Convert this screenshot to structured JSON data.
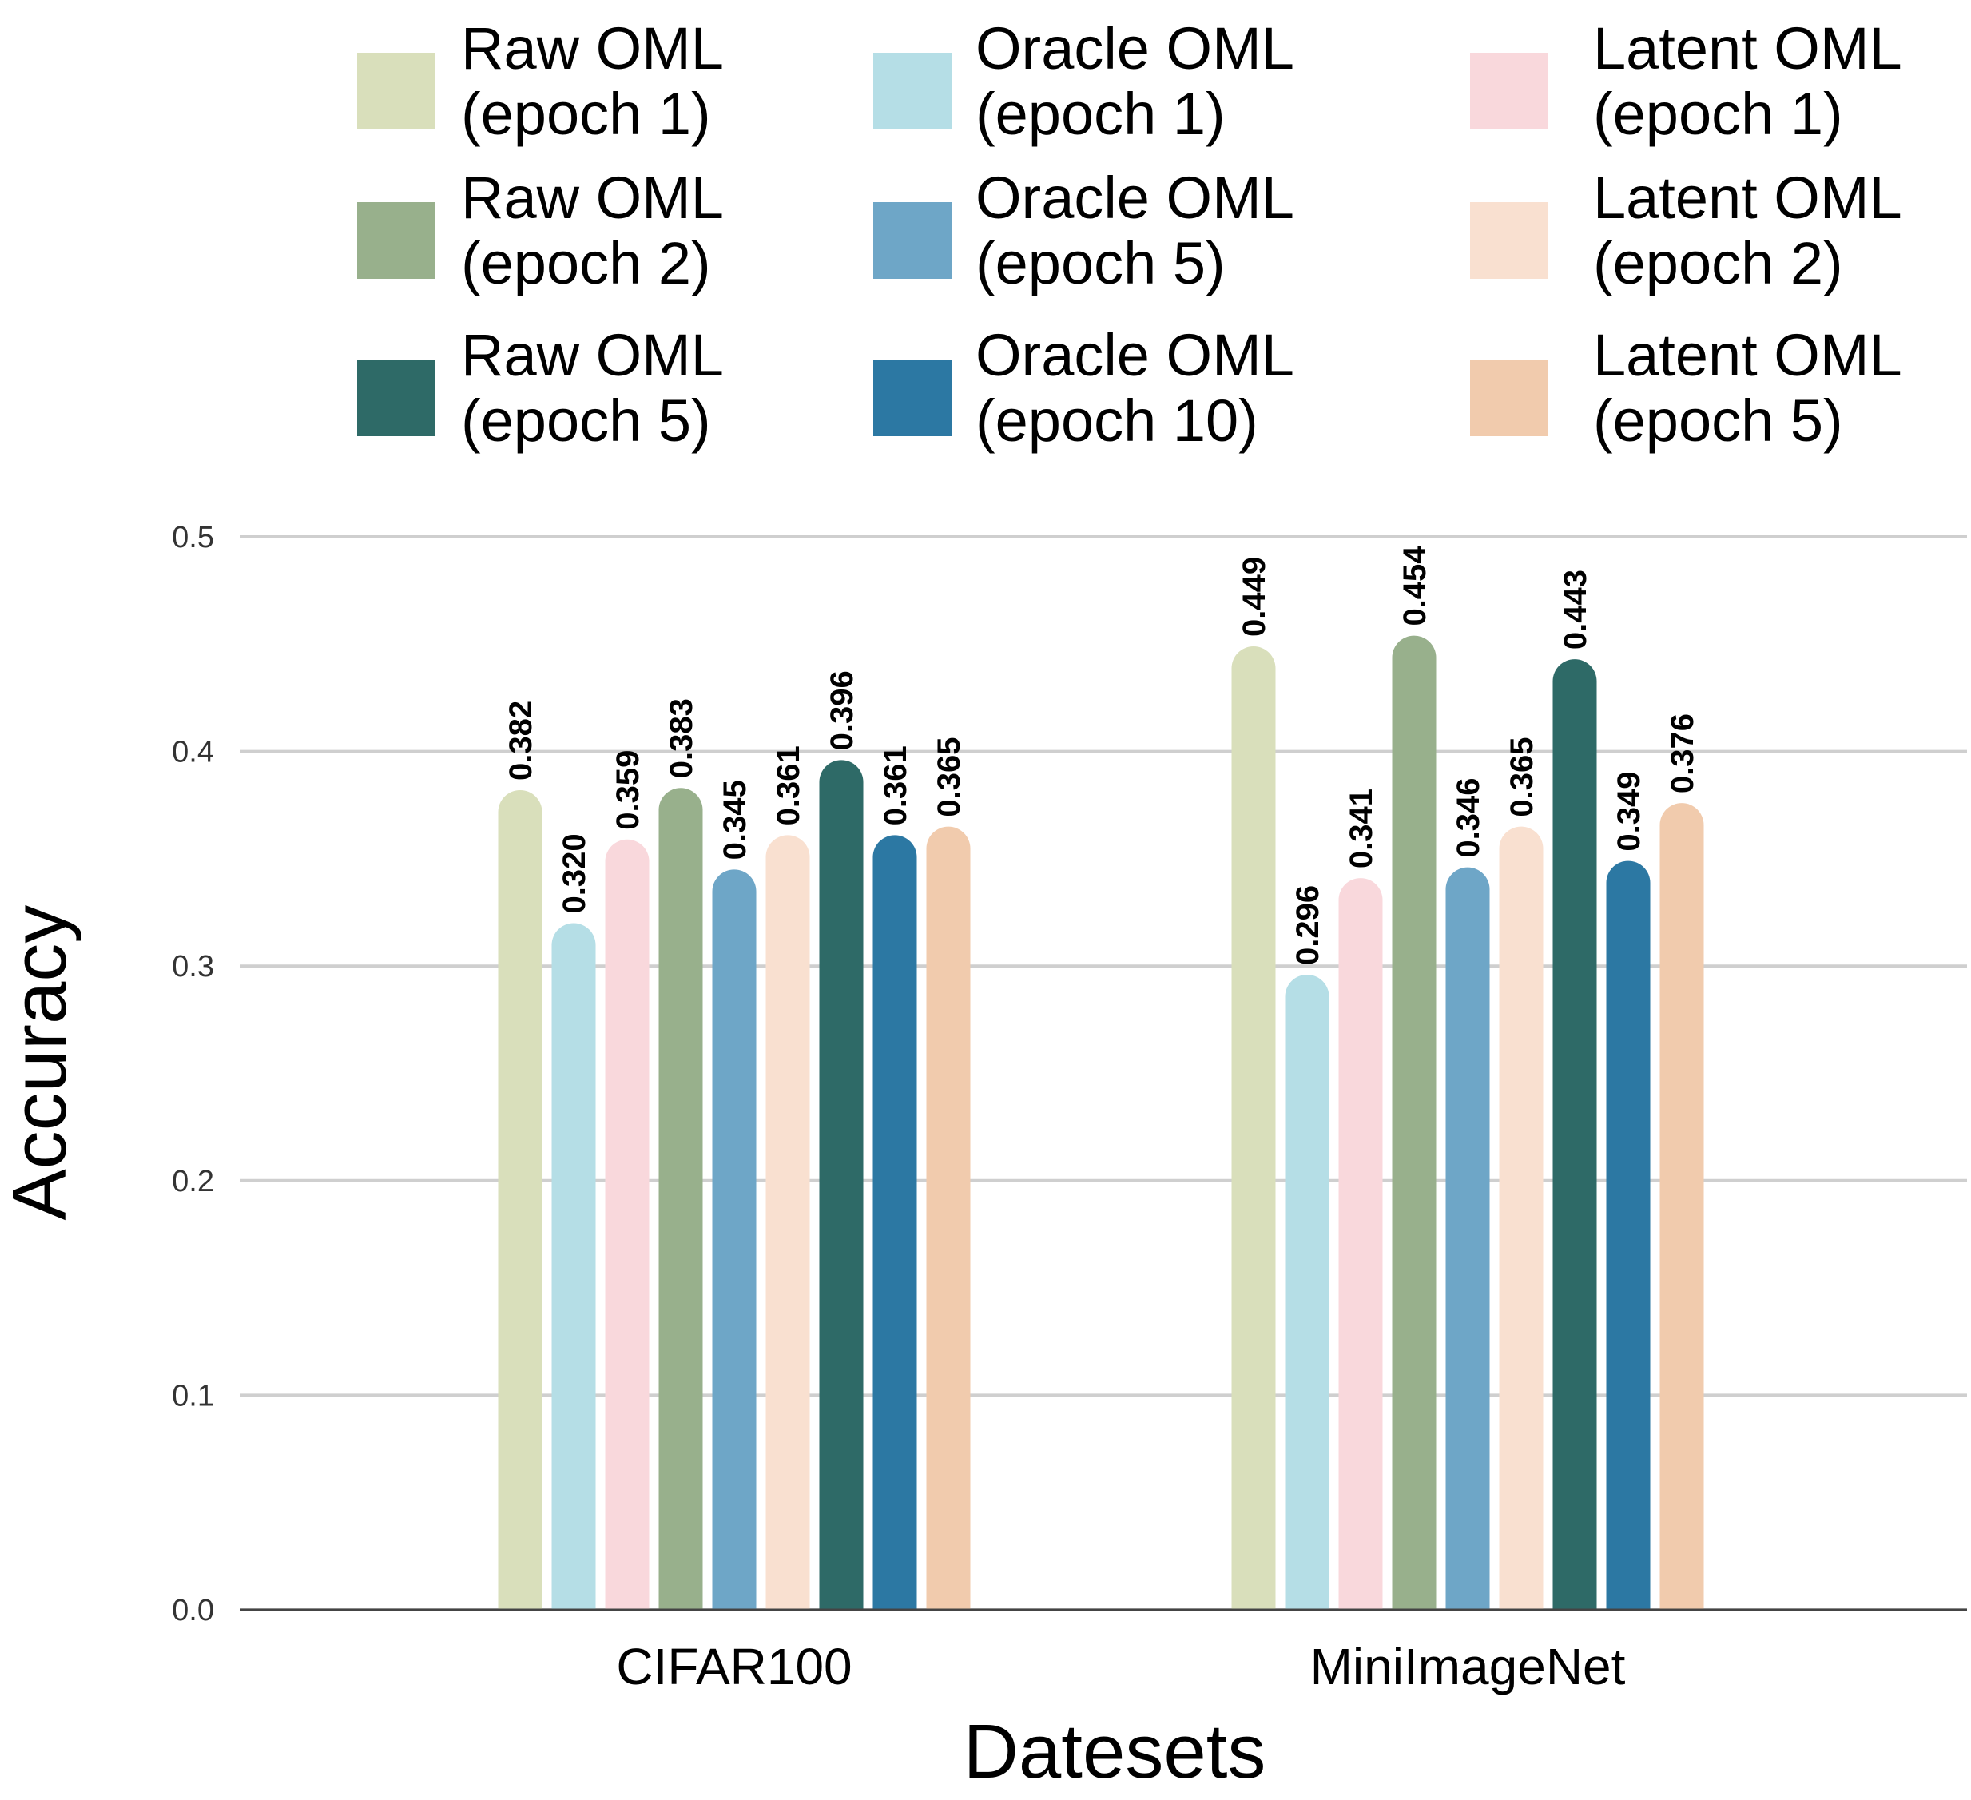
{
  "chart_data": {
    "type": "bar",
    "title": "",
    "xlabel": "Datesets",
    "ylabel": "Accuracy",
    "ylim": [
      0,
      0.5
    ],
    "yticks": [
      "0.0",
      "0.1",
      "0.2",
      "0.3",
      "0.4",
      "0.5"
    ],
    "grid": true,
    "legend_position": "top",
    "categories": [
      "CIFAR100",
      "MiniImageNet"
    ],
    "series": [
      {
        "name": "Raw OML (epoch 1)",
        "line1": "Raw OML",
        "line2": "(epoch 1)",
        "color": "#d9dfbb",
        "values": [
          0.382,
          0.449
        ],
        "labels": [
          "0.382",
          "0.449"
        ]
      },
      {
        "name": "Oracle OML (epoch 1)",
        "line1": "Oracle OML",
        "line2": "(epoch 1)",
        "color": "#b5dee6",
        "values": [
          0.32,
          0.296
        ],
        "labels": [
          "0.320",
          "0.296"
        ]
      },
      {
        "name": "Latent OML (epoch 1)",
        "line1": "Latent OML",
        "line2": "(epoch 1)",
        "color": "#f9d8dc",
        "values": [
          0.359,
          0.341
        ],
        "labels": [
          "0.359",
          "0.341"
        ]
      },
      {
        "name": "Raw OML (epoch 2)",
        "line1": "Raw OML",
        "line2": "(epoch 2)",
        "color": "#98b08c",
        "values": [
          0.383,
          0.454
        ],
        "labels": [
          "0.383",
          "0.454"
        ]
      },
      {
        "name": "Oracle OML (epoch 5)",
        "line1": "Oracle OML",
        "line2": "(epoch 5)",
        "color": "#6ea6c7",
        "values": [
          0.345,
          0.346
        ],
        "labels": [
          "0.345",
          "0.346"
        ]
      },
      {
        "name": "Latent OML (epoch 2)",
        "line1": "Latent OML",
        "line2": "(epoch 2)",
        "color": "#f9e0d0",
        "values": [
          0.361,
          0.365
        ],
        "labels": [
          "0.361",
          "0.365"
        ]
      },
      {
        "name": "Raw OML (epoch 5)",
        "line1": "Raw OML",
        "line2": "(epoch 5)",
        "color": "#2e6a67",
        "values": [
          0.396,
          0.443
        ],
        "labels": [
          "0.396",
          "0.443"
        ]
      },
      {
        "name": "Oracle OML (epoch 10)",
        "line1": "Oracle OML",
        "line2": "(epoch 10)",
        "color": "#2c78a3",
        "values": [
          0.361,
          0.349
        ],
        "labels": [
          "0.361",
          "0.349"
        ]
      },
      {
        "name": "Latent OML (epoch 5)",
        "line1": "Latent OML",
        "line2": "(epoch 5)",
        "color": "#f1cbad",
        "values": [
          0.365,
          0.376
        ],
        "labels": [
          "0.365",
          "0.376"
        ]
      }
    ]
  }
}
